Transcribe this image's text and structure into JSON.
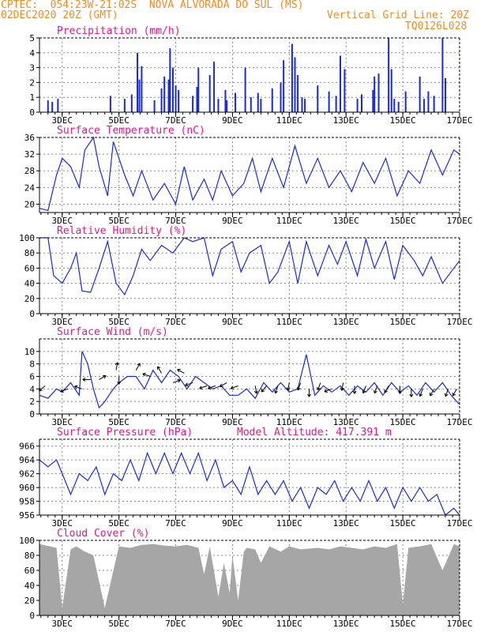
{
  "header": {
    "line1": "CPTEC:  054:23W-21:02S  NOVA ALVORADA DO SUL (MS)",
    "line2_left": "02DEC2020 20Z (GMT)",
    "line2_right": "Vertical Grid Line: 20Z",
    "line3_right": "TQ0126L028"
  },
  "colors": {
    "header": "#f28c1e",
    "title": "#e0188c",
    "series": "#1a2bd6",
    "cloud": "#a6a6a6",
    "grid": "#8a8a8a"
  },
  "x_tick_labels": [
    "3DEC",
    "5DEC",
    "7DEC",
    "9DEC",
    "11DEC",
    "13DEC",
    "15DEC",
    "17DEC"
  ],
  "x_tick_days": [
    3,
    5,
    7,
    9,
    11,
    13,
    15,
    17
  ],
  "x_range_days": [
    2.2,
    17.0
  ],
  "chart_data": [
    {
      "type": "bar",
      "title": "Precipitation (mm/h)",
      "ylim": [
        0,
        5
      ],
      "yticks": [
        0,
        1,
        2,
        3,
        4,
        5
      ],
      "x": [
        2.5,
        2.65,
        2.85,
        4.7,
        5.2,
        5.45,
        5.65,
        5.72,
        5.8,
        6.25,
        6.5,
        6.6,
        6.75,
        6.8,
        6.9,
        7.0,
        7.1,
        7.6,
        7.75,
        7.8,
        8.2,
        8.35,
        8.5,
        8.75,
        8.8,
        9.1,
        9.45,
        9.65,
        9.9,
        10.0,
        10.4,
        10.7,
        10.8,
        11.1,
        11.2,
        11.3,
        11.45,
        11.55,
        12.0,
        12.4,
        12.65,
        12.8,
        12.95,
        13.4,
        13.55,
        13.95,
        14.0,
        14.15,
        14.5,
        14.6,
        14.7,
        14.85,
        15.1,
        15.6,
        15.75,
        15.9,
        16.1,
        16.4,
        16.5
      ],
      "values": [
        0.8,
        0.7,
        0.9,
        1.1,
        0.9,
        1.2,
        4.0,
        2.2,
        3.1,
        0.8,
        1.6,
        2.4,
        2.2,
        4.3,
        3.0,
        1.8,
        1.5,
        1.1,
        1.7,
        3.0,
        2.5,
        3.4,
        0.9,
        1.5,
        0.8,
        1.3,
        3.0,
        1.0,
        1.3,
        0.9,
        1.6,
        2.0,
        3.5,
        4.6,
        3.7,
        2.5,
        1.0,
        0.9,
        1.8,
        1.4,
        1.1,
        3.8,
        2.9,
        0.9,
        1.2,
        1.5,
        2.4,
        2.6,
        5.0,
        2.9,
        0.9,
        0.7,
        1.4,
        2.4,
        0.9,
        1.4,
        1.1,
        5.0,
        2.3
      ]
    },
    {
      "type": "line",
      "title": "Surface Temperature (nC)",
      "ylim": [
        18,
        36
      ],
      "yticks": [
        20,
        24,
        28,
        32,
        36
      ],
      "x": [
        2.2,
        2.5,
        2.8,
        3.0,
        3.3,
        3.6,
        3.8,
        4.1,
        4.3,
        4.6,
        4.8,
        5.2,
        5.5,
        5.8,
        6.2,
        6.6,
        7.0,
        7.3,
        7.6,
        8.0,
        8.3,
        8.6,
        9.0,
        9.4,
        9.7,
        10.0,
        10.4,
        10.8,
        11.2,
        11.6,
        12.0,
        12.4,
        12.8,
        13.2,
        13.6,
        14.0,
        14.4,
        14.8,
        15.2,
        15.6,
        16.0,
        16.4,
        16.8,
        17.0
      ],
      "y": [
        19,
        18.5,
        27,
        31,
        29,
        24,
        33,
        36,
        29,
        22,
        35,
        27,
        22,
        28,
        21,
        25,
        20,
        29,
        21,
        26,
        21,
        28,
        22,
        25,
        31,
        23,
        31,
        24,
        34,
        25,
        31,
        24,
        28,
        23,
        30,
        25,
        31,
        22,
        28,
        25,
        33,
        27,
        33,
        32
      ]
    },
    {
      "type": "line",
      "title": "Relative Humidity (%)",
      "ylim": [
        0,
        100
      ],
      "yticks": [
        0,
        20,
        40,
        60,
        80,
        100
      ],
      "x": [
        2.2,
        2.5,
        2.7,
        3.0,
        3.3,
        3.5,
        3.7,
        4.0,
        4.3,
        4.6,
        4.9,
        5.2,
        5.5,
        5.8,
        6.1,
        6.5,
        6.9,
        7.3,
        7.6,
        8.0,
        8.3,
        8.6,
        9.0,
        9.3,
        9.6,
        10.0,
        10.3,
        10.6,
        11.0,
        11.3,
        11.6,
        12.0,
        12.4,
        12.7,
        13.0,
        13.4,
        13.7,
        14.0,
        14.4,
        14.7,
        15.0,
        15.4,
        15.7,
        16.0,
        16.4,
        16.7,
        17.0
      ],
      "y": [
        100,
        100,
        50,
        40,
        60,
        80,
        30,
        28,
        60,
        95,
        40,
        25,
        50,
        85,
        70,
        90,
        80,
        100,
        95,
        100,
        50,
        85,
        95,
        55,
        80,
        90,
        40,
        55,
        95,
        40,
        95,
        50,
        90,
        65,
        95,
        50,
        98,
        60,
        95,
        45,
        90,
        70,
        50,
        75,
        40,
        55,
        70
      ]
    },
    {
      "type": "line",
      "title": "Surface Wind (m/s)",
      "ylim": [
        0,
        12
      ],
      "yticks": [
        0,
        2,
        4,
        6,
        8,
        10
      ],
      "x": [
        2.2,
        2.5,
        2.8,
        3.0,
        3.3,
        3.6,
        3.7,
        3.9,
        4.1,
        4.3,
        4.5,
        4.8,
        5.0,
        5.3,
        5.6,
        5.9,
        6.2,
        6.5,
        6.8,
        7.1,
        7.4,
        7.7,
        8.0,
        8.3,
        8.6,
        8.9,
        9.2,
        9.5,
        9.8,
        10.1,
        10.4,
        10.7,
        11.0,
        11.3,
        11.6,
        11.9,
        12.2,
        12.5,
        12.8,
        13.1,
        13.4,
        13.7,
        14.0,
        14.3,
        14.6,
        14.9,
        15.2,
        15.5,
        15.8,
        16.1,
        16.4,
        16.7,
        17.0
      ],
      "y": [
        3,
        2.5,
        4,
        3.5,
        5,
        3,
        10,
        8,
        4,
        1,
        2,
        4,
        5,
        6,
        6,
        4,
        7,
        5,
        7,
        6,
        4,
        6,
        5,
        4,
        4.5,
        3,
        3,
        4,
        2.5,
        5,
        3.5,
        5,
        3.5,
        4,
        9.5,
        3,
        4.5,
        3.5,
        4.5,
        3,
        4.5,
        3.5,
        5,
        3,
        5,
        3.5,
        4.5,
        3,
        5,
        3.5,
        5,
        3,
        1.5
      ]
    },
    {
      "type": "line",
      "title": "Surface Pressure (hPa)",
      "ylim": [
        956,
        967
      ],
      "yticks": [
        956,
        958,
        960,
        962,
        964,
        966
      ],
      "x": [
        2.2,
        2.5,
        2.8,
        3.0,
        3.3,
        3.6,
        3.9,
        4.2,
        4.5,
        4.8,
        5.1,
        5.4,
        5.7,
        6.0,
        6.3,
        6.6,
        6.9,
        7.2,
        7.5,
        7.8,
        8.1,
        8.4,
        8.7,
        9.0,
        9.3,
        9.6,
        9.9,
        10.2,
        10.5,
        10.8,
        11.1,
        11.4,
        11.7,
        12.0,
        12.3,
        12.6,
        12.9,
        13.2,
        13.5,
        13.8,
        14.1,
        14.4,
        14.7,
        15.0,
        15.3,
        15.6,
        15.9,
        16.2,
        16.5,
        16.8,
        17.0
      ],
      "y": [
        964,
        963,
        964,
        962,
        959,
        962,
        961,
        963,
        959,
        962,
        961,
        964,
        961,
        965,
        962,
        965,
        962,
        965,
        962,
        965,
        961,
        964,
        960,
        961,
        959,
        963,
        959,
        961,
        959,
        961,
        958,
        960,
        957,
        960,
        959,
        961,
        958,
        960,
        958,
        961,
        958,
        960,
        957,
        960,
        958,
        960,
        958,
        959,
        956,
        957,
        956
      ]
    },
    {
      "type": "area",
      "title": "Cloud Cover (%)",
      "ylim": [
        0,
        100
      ],
      "yticks": [
        0,
        20,
        40,
        60,
        80,
        100
      ],
      "x": [
        2.2,
        2.8,
        3.0,
        3.3,
        3.5,
        3.8,
        4.1,
        4.5,
        5.0,
        5.4,
        5.8,
        6.2,
        6.6,
        7.0,
        7.4,
        7.8,
        8.0,
        8.2,
        8.5,
        8.7,
        8.9,
        9.0,
        9.2,
        9.4,
        9.5,
        9.8,
        10.0,
        10.3,
        10.7,
        11.0,
        11.4,
        12.0,
        12.4,
        12.8,
        13.2,
        13.6,
        14.0,
        14.4,
        14.8,
        15.0,
        15.2,
        15.6,
        16.0,
        16.4,
        16.8,
        17.0
      ],
      "y": [
        95,
        90,
        10,
        88,
        92,
        85,
        80,
        10,
        92,
        90,
        94,
        95,
        93,
        92,
        94,
        90,
        55,
        92,
        25,
        70,
        30,
        80,
        20,
        85,
        90,
        88,
        70,
        92,
        85,
        92,
        88,
        90,
        88,
        92,
        90,
        88,
        92,
        90,
        95,
        15,
        90,
        92,
        95,
        60,
        95,
        92
      ]
    }
  ],
  "subtitle": {
    "altitude_text": "Model Altitude: 417.391 m"
  },
  "wind_arrows": [
    {
      "x": 2.4,
      "v": 4.5,
      "a": 220
    },
    {
      "x": 3.2,
      "v": 4,
      "a": 200
    },
    {
      "x": 3.7,
      "v": 4,
      "a": 160
    },
    {
      "x": 4.0,
      "v": 5.5,
      "a": 180
    },
    {
      "x": 4.3,
      "v": 5.5,
      "a": 30
    },
    {
      "x": 4.9,
      "v": 7,
      "a": 80
    },
    {
      "x": 5.0,
      "v": 6,
      "a": 270
    },
    {
      "x": 5.6,
      "v": 7,
      "a": 60
    },
    {
      "x": 6.1,
      "v": 6,
      "a": 160
    },
    {
      "x": 6.5,
      "v": 6.5,
      "a": 120
    },
    {
      "x": 6.9,
      "v": 5,
      "a": 20
    },
    {
      "x": 7.3,
      "v": 6.5,
      "a": 150
    },
    {
      "x": 7.6,
      "v": 5,
      "a": 200
    },
    {
      "x": 8.1,
      "v": 4.5,
      "a": 200
    },
    {
      "x": 8.4,
      "v": 4.5,
      "a": 200
    },
    {
      "x": 8.8,
      "v": 5,
      "a": 210
    },
    {
      "x": 9.2,
      "v": 4.5,
      "a": 200
    },
    {
      "x": 9.8,
      "v": 4.5,
      "a": 280
    },
    {
      "x": 10.2,
      "v": 4.5,
      "a": 230
    },
    {
      "x": 10.6,
      "v": 4.5,
      "a": 250
    },
    {
      "x": 11.0,
      "v": 5,
      "a": 260
    },
    {
      "x": 11.4,
      "v": 5,
      "a": 250
    },
    {
      "x": 11.7,
      "v": 4,
      "a": 270
    },
    {
      "x": 12.1,
      "v": 5,
      "a": 250
    },
    {
      "x": 12.5,
      "v": 4,
      "a": 200
    },
    {
      "x": 12.9,
      "v": 5,
      "a": 260
    },
    {
      "x": 13.3,
      "v": 4.5,
      "a": 270
    },
    {
      "x": 13.7,
      "v": 4.5,
      "a": 250
    },
    {
      "x": 14.1,
      "v": 4.5,
      "a": 250
    },
    {
      "x": 14.5,
      "v": 4.5,
      "a": 240
    },
    {
      "x": 14.9,
      "v": 4.5,
      "a": 270
    },
    {
      "x": 15.3,
      "v": 4,
      "a": 270
    },
    {
      "x": 15.7,
      "v": 4,
      "a": 250
    },
    {
      "x": 16.1,
      "v": 4,
      "a": 240
    },
    {
      "x": 16.6,
      "v": 4,
      "a": 250
    },
    {
      "x": 16.9,
      "v": 4,
      "a": 240
    }
  ]
}
